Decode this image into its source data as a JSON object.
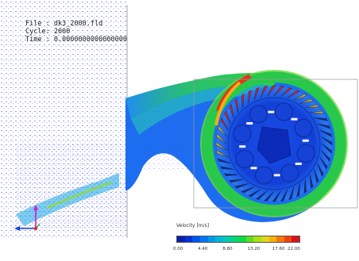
{
  "info": {
    "file": "File : dk3_2000.fld",
    "cycle": "Cycle: 2000",
    "time": "Time : 0.0000000000000000"
  },
  "legend": {
    "title": "Velocity [m/s]",
    "ticks": [
      "0.00",
      "4.40",
      "8.80",
      "13.20",
      "17.60",
      "22.00"
    ],
    "colors": [
      "#0a1ea8",
      "#0033d6",
      "#0055ee",
      "#0078f0",
      "#009ae6",
      "#00b8d8",
      "#00ccb0",
      "#00d880",
      "#10dc40",
      "#5ae020",
      "#a8e018",
      "#e0d818",
      "#f6b010",
      "#f47a0c",
      "#ee4410",
      "#d8141a"
    ]
  },
  "colors": {
    "background": "#ffffff",
    "low_velocity": "#1133dd",
    "mid_velocity": "#22cc44",
    "high_velocity": "#e01818"
  }
}
